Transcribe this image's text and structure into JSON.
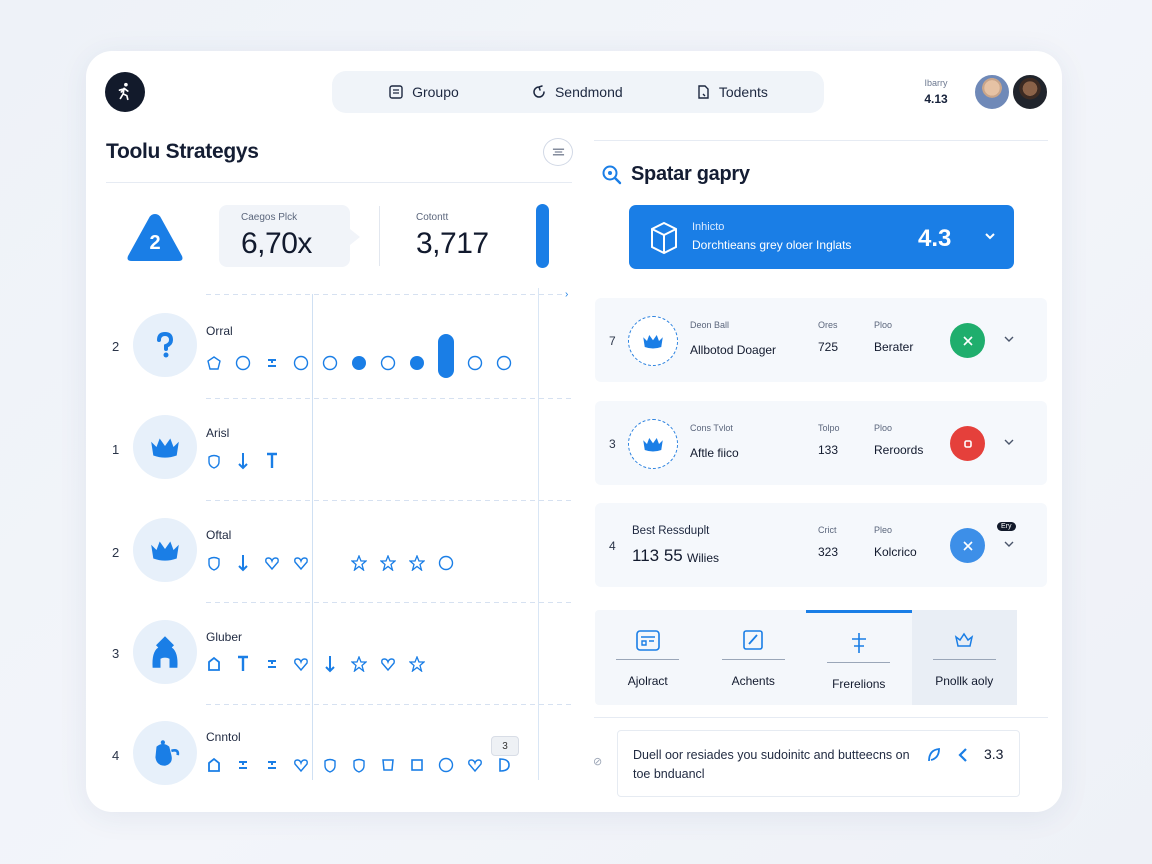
{
  "header": {
    "nav": [
      {
        "label": "Groupo",
        "icon": "book-icon"
      },
      {
        "label": "Sendmond",
        "icon": "refresh-icon"
      },
      {
        "label": "Todents",
        "icon": "document-icon"
      }
    ],
    "user": {
      "name": "Ibarry",
      "score": "4.13"
    }
  },
  "left": {
    "title": "Toolu Strategys",
    "badge": "2",
    "stat1": {
      "label": "Caegos Plck",
      "value": "6,70x"
    },
    "stat2": {
      "label": "Cotontt",
      "value": "3,717"
    },
    "rows": [
      {
        "num": "2",
        "label": "Orral"
      },
      {
        "num": "1",
        "label": "Arisl"
      },
      {
        "num": "2",
        "label": "Oftal"
      },
      {
        "num": "3",
        "label": "Gluber"
      },
      {
        "num": "4",
        "label": "Cnntol"
      }
    ],
    "tooltip": "3"
  },
  "right": {
    "title": "Spatar gapry",
    "hero": {
      "label": "Inhicto",
      "sub": "Dorchtieans grey oloer Inglats",
      "value": "4.3"
    },
    "cards": [
      {
        "num": "7",
        "t1": "Deon Ball",
        "t2": "Allbotod Doager",
        "c1": "Ores",
        "c2": "725",
        "d1": "Ploo",
        "d2": "Berater",
        "status_color": "#1fae6d"
      },
      {
        "num": "3",
        "t1": "Cons Tvlot",
        "t2": "Aftle fiico",
        "c1": "Tolpo",
        "c2": "133",
        "d1": "Ploo",
        "d2": "Reroords",
        "status_color": "#e5403b"
      },
      {
        "num": "4",
        "t1": "Best Ressduplt",
        "t2": "113 55",
        "t2b": "Wilies",
        "c1": "Crict",
        "c2": "323",
        "d1": "Pleo",
        "d2": "Kolcrico",
        "status_color": "#3d8fe8",
        "tag": "Ery"
      }
    ],
    "tabs": [
      "Ajolract",
      "Achents",
      "Frerelions",
      "Pnollk aoly"
    ],
    "bottom": {
      "text": "Duell oor resladesyou sudointc and butuecens on toe bnduancl",
      "text_shown": "Duell oor resiades you sudoinitc and butteecns on toe bnduancl",
      "value": "3.3"
    }
  }
}
